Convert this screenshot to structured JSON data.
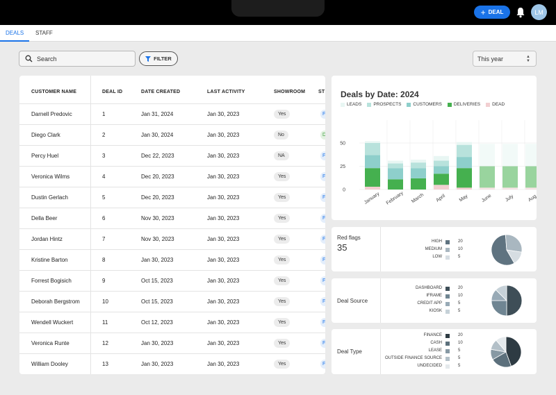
{
  "header": {
    "deal_button_label": "DEAL",
    "avatar_initials": "LM"
  },
  "tabs": [
    {
      "label": "DEALS",
      "active": true
    },
    {
      "label": "STAFF",
      "active": false
    }
  ],
  "toolbar": {
    "search_placeholder": "Search",
    "filter_label": "FILTER",
    "period_value": "This year"
  },
  "table": {
    "columns": [
      "CUSTOMER NAME",
      "DEAL ID",
      "DATE CREATED",
      "LAST ACTIVITY",
      "SHOWROOM",
      "ST"
    ],
    "rows": [
      {
        "customer": "Darnell Predovic",
        "deal_id": "1",
        "date_created": "Jan 31, 2024",
        "last_activity": "Jan 30, 2023",
        "showroom": "Yes",
        "stage": "F",
        "stage_color": "#1a73e8"
      },
      {
        "customer": "Diego Clark",
        "deal_id": "2",
        "date_created": "Jan 30, 2024",
        "last_activity": "Jan 30, 2023",
        "showroom": "No",
        "stage": "D",
        "stage_color": "#3b9b3b"
      },
      {
        "customer": "Percy Huel",
        "deal_id": "3",
        "date_created": "Dec 22, 2023",
        "last_activity": "Jan 30, 2023",
        "showroom": "NA",
        "stage": "F",
        "stage_color": "#1a73e8"
      },
      {
        "customer": "Veronica Wilms",
        "deal_id": "4",
        "date_created": "Dec 20, 2023",
        "last_activity": "Jan 30, 2023",
        "showroom": "Yes",
        "stage": "F",
        "stage_color": "#1a73e8"
      },
      {
        "customer": "Dustin Gerlach",
        "deal_id": "5",
        "date_created": "Dec 20, 2023",
        "last_activity": "Jan 30, 2023",
        "showroom": "Yes",
        "stage": "F",
        "stage_color": "#1a73e8"
      },
      {
        "customer": "Della Beer",
        "deal_id": "6",
        "date_created": "Nov 30, 2023",
        "last_activity": "Jan 30, 2023",
        "showroom": "Yes",
        "stage": "F",
        "stage_color": "#1a73e8"
      },
      {
        "customer": "Jordan Hintz",
        "deal_id": "7",
        "date_created": "Nov 30, 2023",
        "last_activity": "Jan 30, 2023",
        "showroom": "Yes",
        "stage": "F",
        "stage_color": "#1a73e8"
      },
      {
        "customer": "Kristine Barton",
        "deal_id": "8",
        "date_created": "Jan 30, 2023",
        "last_activity": "Jan 30, 2023",
        "showroom": "Yes",
        "stage": "F",
        "stage_color": "#1a73e8"
      },
      {
        "customer": "Forrest Bogisich",
        "deal_id": "9",
        "date_created": "Oct 15, 2023",
        "last_activity": "Jan 30, 2023",
        "showroom": "Yes",
        "stage": "F",
        "stage_color": "#1a73e8"
      },
      {
        "customer": "Deborah Bergstrom",
        "deal_id": "10",
        "date_created": "Oct 15, 2023",
        "last_activity": "Jan 30, 2023",
        "showroom": "Yes",
        "stage": "F",
        "stage_color": "#1a73e8"
      },
      {
        "customer": "Wendell Wuckert",
        "deal_id": "11",
        "date_created": "Oct 12, 2023",
        "last_activity": "Jan 30, 2023",
        "showroom": "Yes",
        "stage": "F",
        "stage_color": "#1a73e8"
      },
      {
        "customer": "Veronica Runte",
        "deal_id": "12",
        "date_created": "Jan 30, 2023",
        "last_activity": "Jan 30, 2023",
        "showroom": "Yes",
        "stage": "F",
        "stage_color": "#1a73e8"
      },
      {
        "customer": "William Dooley",
        "deal_id": "13",
        "date_created": "Jan 30, 2023",
        "last_activity": "Jan 30, 2023",
        "showroom": "Yes",
        "stage": "F",
        "stage_color": "#1a73e8"
      }
    ]
  },
  "chart_data": {
    "type": "bar",
    "stacked": true,
    "title": "Deals by Date: 2024",
    "categories": [
      "January",
      "February",
      "March",
      "April",
      "May",
      "June",
      "July",
      "Aug"
    ],
    "ylim": [
      0,
      60
    ],
    "yticks": [
      0,
      25,
      50
    ],
    "grid": true,
    "legend_position": "top-left",
    "faded_categories": [
      "June",
      "July",
      "Aug"
    ],
    "series": [
      {
        "name": "DEAD",
        "color": "#f2cfd1",
        "values": [
          3,
          0,
          0,
          5,
          2,
          2,
          2,
          2
        ]
      },
      {
        "name": "DELIVERIES",
        "color": "#45b04f",
        "values": [
          20,
          11,
          12,
          12,
          21,
          23,
          23,
          23
        ]
      },
      {
        "name": "CUSTOMERS",
        "color": "#8ecfcb",
        "values": [
          14,
          12,
          11,
          8,
          12,
          0,
          0,
          0
        ]
      },
      {
        "name": "PROSPECTS",
        "color": "#b8e2dc",
        "values": [
          13,
          5,
          6,
          6,
          13,
          0,
          0,
          0
        ]
      },
      {
        "name": "LEADS",
        "color": "#e8f6f3",
        "values": [
          2,
          3,
          3,
          5,
          3,
          24,
          24,
          24
        ]
      }
    ]
  },
  "red_flags": {
    "label": "Red flags",
    "value": "35",
    "items": [
      {
        "label": "HIGH",
        "value": "20",
        "color": "#5f7380"
      },
      {
        "label": "MEDIUM",
        "value": "10",
        "color": "#a9b7c0"
      },
      {
        "label": "LOW",
        "value": "5",
        "color": "#d6dde2"
      }
    ]
  },
  "deal_source": {
    "label": "Deal Source",
    "items": [
      {
        "label": "DASHBOARD",
        "value": "20",
        "color": "#3e4e57"
      },
      {
        "label": "IFRAME",
        "value": "10",
        "color": "#6f8592"
      },
      {
        "label": "CREDIT APP",
        "value": "5",
        "color": "#98aab6"
      },
      {
        "label": "KIOSK",
        "value": "5",
        "color": "#c6d1d8"
      }
    ]
  },
  "deal_type": {
    "label": "Deal Type",
    "items": [
      {
        "label": "FINANCE",
        "value": "20",
        "color": "#2e3b43"
      },
      {
        "label": "CASH",
        "value": "10",
        "color": "#5c707c"
      },
      {
        "label": "LEASE",
        "value": "5",
        "color": "#8799a4"
      },
      {
        "label": "OUTSIDE FINANCE SOURCE",
        "value": "5",
        "color": "#b3c0c8"
      },
      {
        "label": "UNDECIDED",
        "value": "5",
        "color": "#e4e9ec"
      }
    ]
  }
}
